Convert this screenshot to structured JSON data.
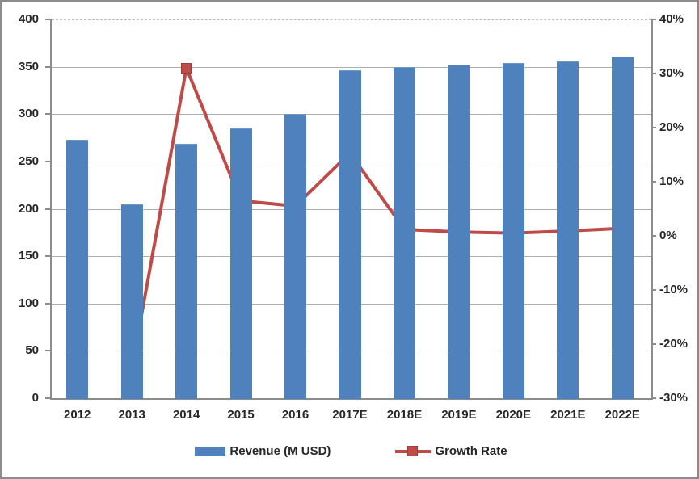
{
  "chart_data": {
    "type": "bar",
    "combo": "bar+line dual axis",
    "title": "",
    "xlabel": "",
    "ylabel": "",
    "grid": true,
    "legend_position": "bottom",
    "categories": [
      "2012",
      "2013",
      "2014",
      "2015",
      "2016",
      "2017E",
      "2018E",
      "2019E",
      "2020E",
      "2021E",
      "2022E"
    ],
    "series": [
      {
        "name": "Revenue (M USD)",
        "type": "bar",
        "axis": "left",
        "color": "#4f81bd",
        "values": [
          273,
          205,
          269,
          285,
          300,
          346,
          350,
          352,
          354,
          356,
          361
        ]
      },
      {
        "name": "Growth Rate",
        "type": "line",
        "axis": "right",
        "color": "#be4b48",
        "values": [
          null,
          -24.5,
          31,
          6.5,
          5.5,
          15.3,
          1.2,
          0.7,
          0.5,
          0.9,
          1.4
        ]
      }
    ],
    "left_axis": {
      "min": 0,
      "max": 400,
      "step": 50,
      "labels": [
        "0",
        "50",
        "100",
        "150",
        "200",
        "250",
        "300",
        "350",
        "400"
      ]
    },
    "right_axis": {
      "min": -30,
      "max": 40,
      "step": 10,
      "labels": [
        "-30%",
        "-20%",
        "-10%",
        "0%",
        "10%",
        "20%",
        "30%",
        "40%"
      ]
    }
  },
  "colors": {
    "bar": "#4f81bd",
    "line": "#be4b48",
    "grid": "#aeacb4",
    "axis": "#8c8c8c",
    "text": "#262626",
    "background": "#ffffff"
  }
}
